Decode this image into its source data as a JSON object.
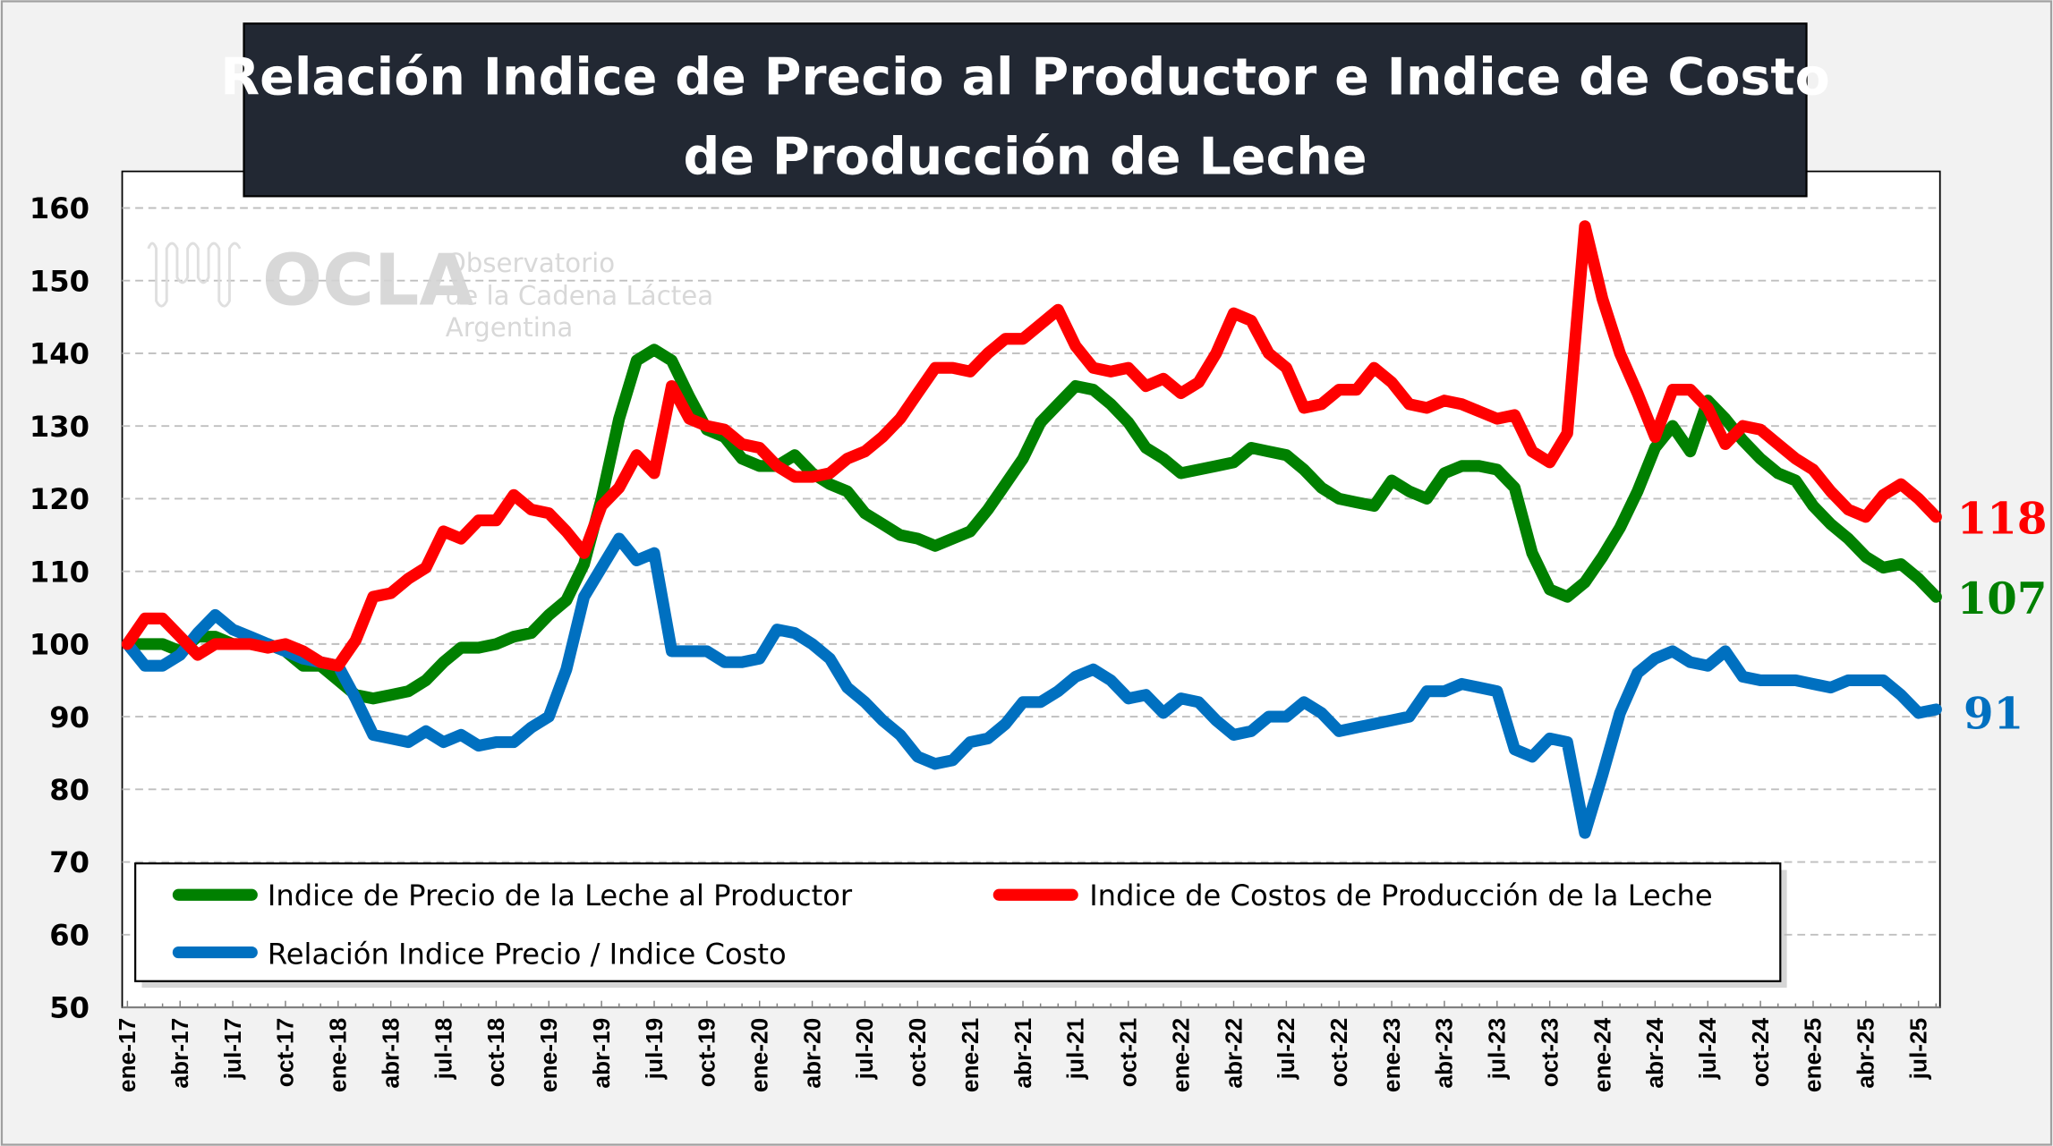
{
  "chart_data": {
    "type": "line",
    "title": "Relación Indice de Precio al Productor e Indice de Costo de Producción de Leche",
    "title_lines": [
      "Relación Indice de Precio al Productor e Indice de Costo",
      "de Producción de Leche"
    ],
    "xlabel": "",
    "ylabel": "",
    "ylim": [
      50,
      160
    ],
    "yticks": [
      "50",
      "60",
      "70",
      "80",
      "90",
      "100",
      "110",
      "120",
      "130",
      "140",
      "150",
      "160"
    ],
    "grid": true,
    "legend_position": "bottom-left inside",
    "x_start": "ene-17",
    "x_end": "ago-25",
    "xtick_labels": [
      "ene-17",
      "abr-17",
      "jul-17",
      "oct-17",
      "ene-18",
      "abr-18",
      "jul-18",
      "oct-18",
      "ene-19",
      "abr-19",
      "jul-19",
      "oct-19",
      "ene-20",
      "abr-20",
      "jul-20",
      "oct-20",
      "ene-21",
      "abr-21",
      "jul-21",
      "oct-21",
      "ene-22",
      "abr-22",
      "jul-22",
      "oct-22",
      "ene-23",
      "abr-23",
      "jul-23",
      "oct-23",
      "ene-24",
      "abr-24",
      "jul-24",
      "oct-24",
      "ene-25",
      "abr-25",
      "jul-25"
    ],
    "series": [
      {
        "name": "Indice de Precio de la Leche al Productor",
        "color": "#008000",
        "end_label": "107",
        "values": [
          100,
          100,
          100,
          99,
          101,
          101,
          100,
          100,
          100,
          99,
          97,
          97,
          95,
          93,
          92.5,
          93,
          93.5,
          95,
          97.5,
          99.5,
          99.5,
          100,
          101,
          101.5,
          104,
          106,
          111,
          120,
          131,
          139,
          140.5,
          139,
          134,
          129.5,
          128.5,
          125.5,
          124.5,
          124.5,
          126,
          123.5,
          122,
          121,
          118,
          116.5,
          115,
          114.5,
          113.5,
          114.5,
          115.5,
          118.5,
          122,
          125.5,
          130.5,
          133,
          135.5,
          135,
          133,
          130.5,
          127,
          125.5,
          123.5,
          124,
          124.5,
          125,
          127,
          126.5,
          126,
          124,
          121.5,
          120,
          119.5,
          119,
          122.5,
          121,
          120,
          123.5,
          124.5,
          124.5,
          124,
          121.5,
          112.5,
          107.5,
          106.5,
          108.5,
          112,
          116,
          121,
          127,
          130,
          126.5,
          133.5,
          131,
          128,
          125.5,
          123.5,
          122.5,
          119,
          116.5,
          114.5,
          112,
          110.5,
          111,
          109,
          106.5
        ]
      },
      {
        "name": "Indice de Costos de Producción de la Leche",
        "color": "#FF0000",
        "end_label": "118",
        "values": [
          100,
          103.5,
          103.5,
          101,
          98.5,
          100,
          100,
          100,
          99.5,
          100,
          99,
          97.5,
          97,
          100.5,
          106.5,
          107,
          109,
          110.5,
          115.5,
          114.5,
          117,
          117,
          120.5,
          118.5,
          118,
          115.5,
          112.5,
          119,
          121.5,
          126,
          123.5,
          135.5,
          131,
          130,
          129.5,
          127.5,
          127,
          124.5,
          123,
          123,
          123.5,
          125.5,
          126.5,
          128.5,
          131,
          134.5,
          138,
          138,
          137.5,
          140,
          142,
          142,
          144,
          146,
          141,
          138,
          137.5,
          138,
          135.5,
          136.5,
          134.5,
          136,
          140,
          145.5,
          144.5,
          140,
          138,
          132.5,
          133,
          135,
          135,
          138,
          136,
          133,
          132.5,
          133.5,
          133,
          132,
          131,
          131.5,
          126.5,
          125,
          129,
          157.5,
          147.5,
          140,
          134.5,
          128.5,
          135,
          135,
          132.5,
          127.5,
          130,
          129.5,
          127.5,
          125.5,
          124,
          121,
          118.5,
          117.5,
          120.5,
          122,
          120,
          117.5
        ]
      },
      {
        "name": "Relación Indice Precio / Indice Costo",
        "color": "#0070C0",
        "end_label": "91",
        "values": [
          100,
          97,
          97,
          98.5,
          101.5,
          104,
          102,
          101,
          100,
          99,
          98,
          97.5,
          97,
          92.5,
          87.5,
          87,
          86.5,
          88,
          86.5,
          87.5,
          86,
          86.5,
          86.5,
          88.5,
          90,
          96.5,
          106.5,
          110.5,
          114.5,
          111.5,
          112.5,
          99,
          99,
          99,
          97.5,
          97.5,
          98,
          102,
          101.5,
          100,
          98,
          94,
          92,
          89.5,
          87.5,
          84.5,
          83.5,
          84,
          86.5,
          87,
          89,
          92,
          92,
          93.5,
          95.5,
          96.5,
          95,
          92.5,
          93,
          90.5,
          92.5,
          92,
          89.5,
          87.5,
          88,
          90,
          90,
          92,
          90.5,
          88,
          88.5,
          89,
          89.5,
          90,
          93.5,
          93.5,
          94.5,
          94,
          93.5,
          85.5,
          84.5,
          87,
          86.5,
          74,
          82,
          90.5,
          96,
          98,
          99,
          97.5,
          97,
          99,
          95.5,
          95,
          95,
          95,
          94.5,
          94,
          95,
          95,
          95,
          93,
          90.5,
          91
        ]
      }
    ]
  },
  "watermark": {
    "logo": "OCLA",
    "line1": "Observatorio",
    "line2": "de la Cadena Láctea",
    "line3": "Argentina"
  }
}
